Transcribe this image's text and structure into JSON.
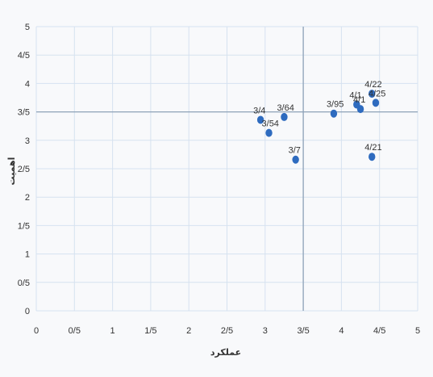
{
  "chart_data": {
    "type": "scatter",
    "title": "",
    "xlabel": "عملکرد",
    "ylabel": "اهمیت",
    "xlim": [
      0,
      5
    ],
    "ylim": [
      0,
      5
    ],
    "x_ticks": [
      "0",
      "0/5",
      "1",
      "1/5",
      "2",
      "2/5",
      "3",
      "3/5",
      "4",
      "4/5",
      "5"
    ],
    "y_ticks": [
      "0",
      "0/5",
      "1",
      "1/5",
      "2",
      "2/5",
      "3",
      "3/5",
      "4",
      "4/5",
      "5"
    ],
    "grid": true,
    "reference_lines": {
      "x": 3.5,
      "y": 3.5
    },
    "marker_color": "#2e6bbf",
    "points": [
      {
        "x": 2.94,
        "y": 3.36,
        "label": "3/4"
      },
      {
        "x": 3.05,
        "y": 3.13,
        "label": "3/54"
      },
      {
        "x": 3.25,
        "y": 3.41,
        "label": "3/64"
      },
      {
        "x": 3.4,
        "y": 2.66,
        "label": "3/7"
      },
      {
        "x": 3.9,
        "y": 3.47,
        "label": "3/95"
      },
      {
        "x": 4.2,
        "y": 3.63,
        "label": "4/1"
      },
      {
        "x": 4.25,
        "y": 3.55,
        "label": "4/1"
      },
      {
        "x": 4.4,
        "y": 3.82,
        "label": "4/22"
      },
      {
        "x": 4.45,
        "y": 3.66,
        "label": "4/25"
      },
      {
        "x": 4.4,
        "y": 2.71,
        "label": "4/21"
      }
    ]
  }
}
